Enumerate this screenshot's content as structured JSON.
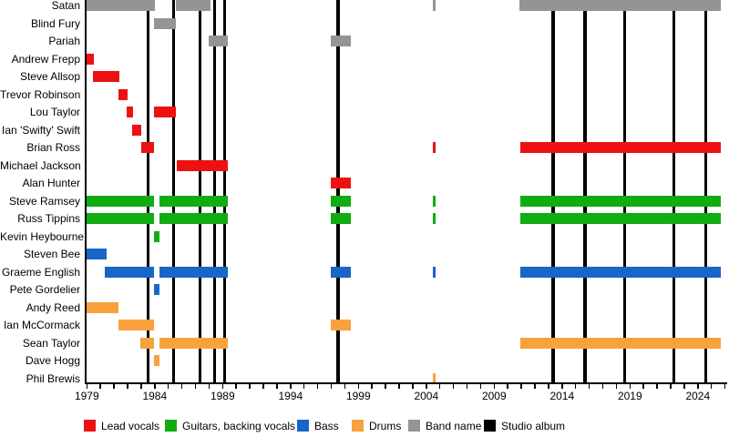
{
  "colors": {
    "lead_vocals": "#ee1111",
    "guitars": "#11ac11",
    "bass": "#1766c8",
    "drums": "#f9a13c",
    "band_name": "#949494",
    "studio_album": "#000000"
  },
  "legend": {
    "items": [
      {
        "label": "Lead vocals",
        "color_key": "lead_vocals"
      },
      {
        "label": "Guitars, backing vocals",
        "color_key": "guitars"
      },
      {
        "label": "Bass",
        "color_key": "bass"
      },
      {
        "label": "Drums",
        "color_key": "drums"
      },
      {
        "label": "Band name",
        "color_key": "band_name"
      },
      {
        "label": "Studio album",
        "color_key": "studio_album"
      }
    ]
  },
  "chart_data": {
    "type": "bar",
    "subtype": "gantt-member-timeline",
    "title": "",
    "xlabel": "",
    "ylabel": "",
    "x_axis": {
      "range": [
        1979,
        2026
      ],
      "labeled_ticks": [
        1979,
        1984,
        1989,
        1994,
        1999,
        2004,
        2009,
        2014,
        2019,
        2024
      ],
      "minor_tick_every": 1
    },
    "album_lines": [
      1983.5,
      1985.4,
      1987.35,
      1988.4,
      1989.15,
      1997.5,
      2013.35,
      2015.7,
      2018.6,
      2022.25,
      2024.6
    ],
    "rows": [
      {
        "label": "Satan",
        "role": "band_name",
        "segments": [
          [
            1979.0,
            1984.0
          ],
          [
            1985.55,
            1988.1
          ],
          [
            2004.45,
            2004.7
          ],
          [
            2010.85,
            2025.7
          ]
        ]
      },
      {
        "label": "Blind Fury",
        "role": "band_name",
        "segments": [
          [
            1983.95,
            1985.55
          ]
        ]
      },
      {
        "label": "Pariah",
        "role": "band_name",
        "segments": [
          [
            1988.0,
            1989.4
          ],
          [
            1996.95,
            1998.45
          ]
        ]
      },
      {
        "label": "Andrew Frepp",
        "role": "lead_vocals",
        "segments": [
          [
            1979.0,
            1979.5
          ]
        ]
      },
      {
        "label": "Steve Allsop",
        "role": "lead_vocals",
        "segments": [
          [
            1979.45,
            1981.4
          ]
        ]
      },
      {
        "label": "Trevor Robinson",
        "role": "lead_vocals",
        "segments": [
          [
            1981.35,
            1982.0
          ]
        ]
      },
      {
        "label": "Lou Taylor",
        "role": "lead_vocals",
        "segments": [
          [
            1981.95,
            1982.4
          ],
          [
            1983.95,
            1985.55
          ]
        ]
      },
      {
        "label": "Ian 'Swifty' Swift",
        "role": "lead_vocals",
        "segments": [
          [
            1982.35,
            1983.0
          ]
        ]
      },
      {
        "label": "Brian Ross",
        "role": "lead_vocals",
        "segments": [
          [
            1983.0,
            1983.95
          ],
          [
            2004.45,
            2004.7
          ],
          [
            2010.9,
            2025.7
          ]
        ]
      },
      {
        "label": "Michael Jackson",
        "role": "lead_vocals",
        "segments": [
          [
            1985.6,
            1989.4
          ]
        ]
      },
      {
        "label": "Alan Hunter",
        "role": "lead_vocals",
        "segments": [
          [
            1996.95,
            1998.45
          ]
        ]
      },
      {
        "label": "Steve Ramsey",
        "role": "guitars",
        "segments": [
          [
            1979.0,
            1983.95
          ],
          [
            1984.35,
            1989.4
          ],
          [
            1996.95,
            1998.45
          ],
          [
            2004.45,
            2004.7
          ],
          [
            2010.9,
            2025.7
          ]
        ]
      },
      {
        "label": "Russ Tippins",
        "role": "guitars",
        "segments": [
          [
            1979.0,
            1983.95
          ],
          [
            1984.35,
            1989.4
          ],
          [
            1996.95,
            1998.45
          ],
          [
            2004.45,
            2004.7
          ],
          [
            2010.9,
            2025.7
          ]
        ]
      },
      {
        "label": "Kevin Heybourne",
        "role": "guitars",
        "segments": [
          [
            1983.95,
            1984.35
          ]
        ]
      },
      {
        "label": "Steven Bee",
        "role": "bass",
        "segments": [
          [
            1979.0,
            1980.45
          ]
        ]
      },
      {
        "label": "Graeme English",
        "role": "bass",
        "segments": [
          [
            1980.3,
            1983.95
          ],
          [
            1984.35,
            1989.4
          ],
          [
            1996.95,
            1998.45
          ],
          [
            2004.45,
            2004.7
          ],
          [
            2010.9,
            2025.7
          ]
        ]
      },
      {
        "label": "Pete Gordelier",
        "role": "bass",
        "segments": [
          [
            1983.95,
            1984.35
          ]
        ]
      },
      {
        "label": "Andy Reed",
        "role": "drums",
        "segments": [
          [
            1979.0,
            1981.35
          ]
        ]
      },
      {
        "label": "Ian McCormack",
        "role": "drums",
        "segments": [
          [
            1981.35,
            1983.95
          ],
          [
            1996.95,
            1998.45
          ]
        ]
      },
      {
        "label": "Sean Taylor",
        "role": "drums",
        "segments": [
          [
            1982.95,
            1983.95
          ],
          [
            1984.35,
            1989.4
          ],
          [
            2010.9,
            2025.7
          ]
        ]
      },
      {
        "label": "Dave Hogg",
        "role": "drums",
        "segments": [
          [
            1983.95,
            1984.35
          ]
        ]
      },
      {
        "label": "Phil Brewis",
        "role": "drums",
        "segments": [
          [
            2004.45,
            2004.7
          ]
        ]
      }
    ]
  }
}
